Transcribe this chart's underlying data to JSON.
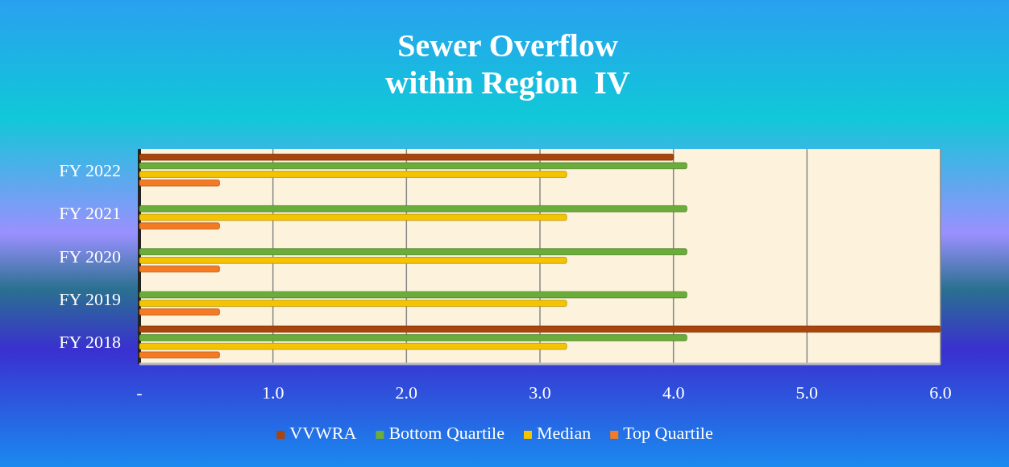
{
  "chart_data": {
    "type": "bar",
    "orientation": "horizontal",
    "title": "Sewer Overflow\nwithin Region  IV",
    "categories": [
      "FY 2022",
      "FY 2021",
      "FY 2020",
      "FY 2019",
      "FY 2018"
    ],
    "series": [
      {
        "name": "VVWRA",
        "color": "#a9440c",
        "values": [
          4.0,
          0,
          0,
          0,
          6.0
        ]
      },
      {
        "name": "Bottom Quartile",
        "color": "#6aad3a",
        "values": [
          4.1,
          4.1,
          4.1,
          4.1,
          4.1
        ]
      },
      {
        "name": "Median",
        "color": "#f5c400",
        "values": [
          3.2,
          3.2,
          3.2,
          3.2,
          3.2
        ]
      },
      {
        "name": "Top Quartile",
        "color": "#f47a24",
        "values": [
          0.6,
          0.6,
          0.6,
          0.6,
          0.6
        ]
      }
    ],
    "xlim": [
      0,
      6
    ],
    "xticks": [
      {
        "value": 0,
        "label": "-"
      },
      {
        "value": 1,
        "label": "1.0"
      },
      {
        "value": 2,
        "label": "2.0"
      },
      {
        "value": 3,
        "label": "3.0"
      },
      {
        "value": 4,
        "label": "4.0"
      },
      {
        "value": 5,
        "label": "5.0"
      },
      {
        "value": 6,
        "label": "6.0"
      }
    ],
    "grid": "x",
    "legend": "bottom"
  }
}
